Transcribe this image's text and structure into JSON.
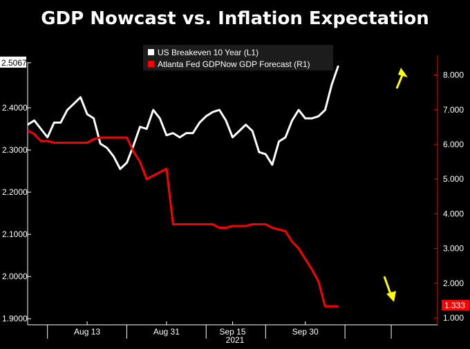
{
  "title": "GDP Nowcast vs. Inflation Expectation",
  "chart_data": {
    "type": "line",
    "title": "GDP Nowcast vs. Inflation Expectation",
    "x_tick_labels": [
      "Aug 13",
      "Aug 31",
      "Sep 15",
      "Sep 30"
    ],
    "year_label": "2021",
    "y_left": {
      "ylim": [
        1.9,
        2.5067
      ],
      "ticks": [
        "2.5067",
        "2.4000",
        "2.3000",
        "2.2000",
        "2.1000",
        "2.0000",
        "1.9000"
      ],
      "tick_values": [
        2.5067,
        2.4,
        2.3,
        2.2,
        2.1,
        2.0,
        1.9
      ]
    },
    "y_right": {
      "ylim": [
        1.0,
        8.5
      ],
      "ticks": [
        "8.000",
        "7.000",
        "6.000",
        "5.000",
        "4.000",
        "3.000",
        "2.000",
        "1.000"
      ],
      "tick_values": [
        8,
        7,
        6,
        5,
        4,
        3,
        2,
        1
      ]
    },
    "legend": {
      "placement": "top-center",
      "entries": [
        "US Breakeven 10 Year  (L1)",
        "Atlanta Fed GDPNow GDP Forecast  (R1)"
      ]
    },
    "series": [
      {
        "name": "US Breakeven 10 Year  (L1)",
        "axis": "left",
        "color": "#ffffff",
        "x": [
          0,
          1,
          2,
          3,
          4,
          5,
          6,
          7,
          8,
          9,
          10,
          11,
          12,
          13,
          14,
          15,
          16,
          17,
          18,
          19,
          20,
          21,
          22,
          23,
          24,
          25,
          26,
          27,
          28,
          29,
          30,
          31,
          32,
          33,
          34,
          35,
          36,
          37,
          38,
          39,
          40,
          41,
          42,
          43,
          44,
          45,
          46,
          47,
          48,
          49,
          50,
          51
        ],
        "values": [
          2.36,
          2.37,
          2.35,
          2.33,
          2.365,
          2.365,
          2.395,
          2.41,
          2.425,
          2.385,
          2.375,
          2.315,
          2.305,
          2.285,
          2.255,
          2.27,
          2.31,
          2.355,
          2.35,
          2.395,
          2.375,
          2.335,
          2.34,
          2.33,
          2.34,
          2.34,
          2.365,
          2.38,
          2.39,
          2.395,
          2.37,
          2.33,
          2.345,
          2.36,
          2.345,
          2.295,
          2.29,
          2.265,
          2.32,
          2.33,
          2.37,
          2.395,
          2.375,
          2.375,
          2.38,
          2.395,
          2.455,
          2.5,
          null,
          null,
          null,
          null
        ]
      },
      {
        "name": "Atlanta Fed GDPNow GDP Forecast  (R1)",
        "axis": "right",
        "color": "#ff0000",
        "x": [
          0,
          1,
          2,
          3,
          4,
          5,
          6,
          7,
          8,
          9,
          10,
          11,
          12,
          13,
          14,
          15,
          16,
          17,
          18,
          19,
          20,
          21,
          22,
          23,
          24,
          25,
          26,
          27,
          28,
          29,
          30,
          31,
          32,
          33,
          34,
          35,
          36,
          37,
          38,
          39,
          40,
          41,
          42,
          43,
          44,
          45,
          46,
          47
        ],
        "values": [
          6.4,
          6.3,
          6.1,
          6.1,
          6.05,
          6.05,
          6.05,
          6.05,
          6.05,
          6.05,
          6.15,
          6.2,
          6.2,
          6.2,
          6.2,
          6.2,
          5.8,
          5.5,
          5.0,
          5.1,
          5.2,
          5.3,
          3.7,
          3.7,
          3.7,
          3.7,
          3.7,
          3.7,
          3.7,
          3.6,
          3.6,
          3.65,
          3.65,
          3.65,
          3.7,
          3.7,
          3.7,
          3.6,
          3.55,
          3.5,
          3.2,
          3.0,
          2.7,
          2.4,
          2.05,
          1.333,
          1.333,
          1.333
        ]
      }
    ],
    "last_value_label": "1.333",
    "annotations": [
      "yellow arrow up (breakeven)",
      "yellow arrow down (GDP forecast)"
    ],
    "grid": false
  },
  "colors": {
    "background": "#000000",
    "breakeven": "#ffffff",
    "gdpnow": "#ff0000",
    "arrow": "#ffff00",
    "axis": "#ffffff",
    "right_axis": "#ff0000"
  }
}
